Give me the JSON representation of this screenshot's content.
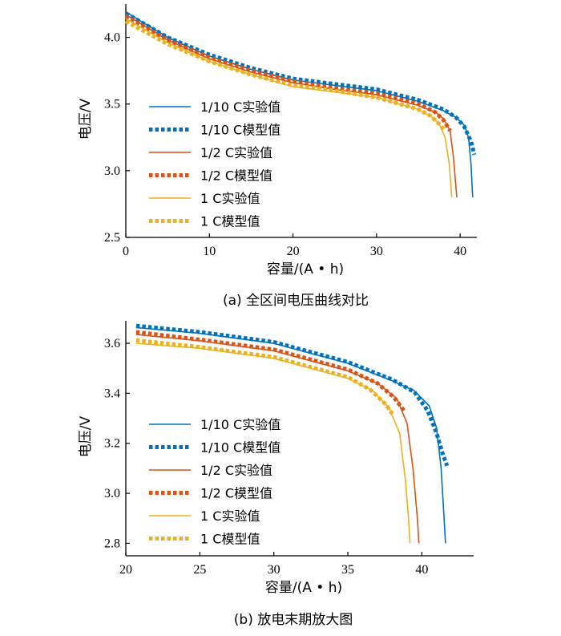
{
  "chart_data": [
    {
      "type": "line",
      "caption": "(a)  全区间电压曲线对比",
      "xlabel": "容量/(A • h)",
      "ylabel": "电压/V",
      "xlim": [
        0,
        42
      ],
      "ylim": [
        2.5,
        4.25
      ],
      "xticks": [
        0,
        10,
        20,
        30,
        40
      ],
      "yticks": [
        2.5,
        3.0,
        3.5,
        4.0
      ],
      "xtick_labels": [
        "0",
        "10",
        "20",
        "30",
        "40"
      ],
      "ytick_labels": [
        "2.5",
        "3.0",
        "3.5",
        "4.0"
      ],
      "legend_position": "center-left",
      "grid": false,
      "series": [
        {
          "name": "1/10 C实验值",
          "color": "#0072BD",
          "style": "solid",
          "x": [
            0,
            5,
            10,
            15,
            20,
            25,
            30,
            35,
            38,
            39.5,
            40.5,
            41,
            41.3,
            41.5
          ],
          "y": [
            4.19,
            4.0,
            3.86,
            3.76,
            3.68,
            3.64,
            3.6,
            3.52,
            3.45,
            3.4,
            3.34,
            3.25,
            3.05,
            2.8
          ]
        },
        {
          "name": "1/10 C模型值",
          "color": "#0072BD",
          "style": "dotted",
          "x": [
            0,
            5,
            10,
            15,
            20,
            25,
            30,
            35,
            38,
            39.5,
            40.5,
            41.3,
            41.7
          ],
          "y": [
            4.18,
            4.0,
            3.87,
            3.77,
            3.69,
            3.65,
            3.61,
            3.53,
            3.46,
            3.4,
            3.33,
            3.22,
            3.12
          ]
        },
        {
          "name": "1/2 C实验值",
          "color": "#D95319",
          "style": "solid",
          "x": [
            0,
            5,
            10,
            15,
            20,
            25,
            30,
            35,
            37,
            38,
            38.8,
            39.2,
            39.6
          ],
          "y": [
            4.17,
            3.98,
            3.84,
            3.74,
            3.66,
            3.61,
            3.57,
            3.49,
            3.44,
            3.39,
            3.3,
            3.1,
            2.8
          ]
        },
        {
          "name": "1/2 C模型值",
          "color": "#D95319",
          "style": "dotted",
          "x": [
            0,
            5,
            10,
            15,
            20,
            25,
            30,
            35,
            37,
            38,
            38.8
          ],
          "y": [
            4.16,
            3.98,
            3.85,
            3.75,
            3.67,
            3.62,
            3.58,
            3.5,
            3.44,
            3.38,
            3.3
          ]
        },
        {
          "name": "1 C实验值",
          "color": "#EDB120",
          "style": "solid",
          "x": [
            0,
            5,
            10,
            15,
            20,
            25,
            30,
            35,
            36.5,
            37.5,
            38.2,
            38.7,
            39
          ],
          "y": [
            4.14,
            3.96,
            3.82,
            3.72,
            3.63,
            3.59,
            3.55,
            3.46,
            3.41,
            3.35,
            3.25,
            3.05,
            2.8
          ]
        },
        {
          "name": "1 C模型值",
          "color": "#EDB120",
          "style": "dotted",
          "x": [
            0,
            5,
            10,
            15,
            20,
            25,
            30,
            35,
            36.5,
            37.5,
            38.2
          ],
          "y": [
            4.12,
            3.95,
            3.82,
            3.72,
            3.64,
            3.6,
            3.55,
            3.46,
            3.41,
            3.35,
            3.3
          ]
        }
      ]
    },
    {
      "type": "line",
      "caption": "(b)  放电末期放大图",
      "xlabel": "容量/(A • h)",
      "ylabel": "电压/V",
      "xlim": [
        20,
        43.5
      ],
      "ylim": [
        2.75,
        3.69
      ],
      "xticks": [
        20,
        25,
        30,
        35,
        40
      ],
      "yticks": [
        2.8,
        3.0,
        3.2,
        3.4,
        3.6
      ],
      "xtick_labels": [
        "20",
        "25",
        "30",
        "35",
        "40"
      ],
      "ytick_labels": [
        "2.8",
        "3.0",
        "3.2",
        "3.4",
        "3.6"
      ],
      "legend_position": "lower-left",
      "grid": false,
      "series": [
        {
          "name": "1/10 C实验值",
          "color": "#0072BD",
          "style": "solid",
          "x": [
            20.7,
            25,
            30,
            35,
            38,
            39.5,
            40.5,
            41,
            41.3,
            41.5,
            41.6
          ],
          "y": [
            3.663,
            3.64,
            3.6,
            3.52,
            3.45,
            3.41,
            3.35,
            3.26,
            3.1,
            2.9,
            2.8
          ]
        },
        {
          "name": "1/10 C模型值",
          "color": "#0072BD",
          "style": "dotted",
          "x": [
            20.7,
            25,
            30,
            35,
            38,
            39.5,
            40.4,
            41,
            41.4,
            41.7
          ],
          "y": [
            3.67,
            3.645,
            3.605,
            3.525,
            3.455,
            3.405,
            3.33,
            3.24,
            3.16,
            3.11
          ]
        },
        {
          "name": "1/2 C实验值",
          "color": "#D95319",
          "style": "solid",
          "x": [
            20.7,
            25,
            30,
            35,
            37,
            38.3,
            39,
            39.4,
            39.7,
            39.8
          ],
          "y": [
            3.635,
            3.61,
            3.57,
            3.49,
            3.44,
            3.38,
            3.28,
            3.1,
            2.9,
            2.8
          ]
        },
        {
          "name": "1/2 C模型值",
          "color": "#D95319",
          "style": "dotted",
          "x": [
            20.7,
            25,
            30,
            35,
            37,
            38.1,
            38.8
          ],
          "y": [
            3.645,
            3.615,
            3.575,
            3.495,
            3.44,
            3.385,
            3.33
          ]
        },
        {
          "name": "1 C实验值",
          "color": "#EDB120",
          "style": "solid",
          "x": [
            20.7,
            25,
            30,
            35,
            36.7,
            37.8,
            38.5,
            38.9,
            39.1,
            39.2
          ],
          "y": [
            3.6,
            3.58,
            3.54,
            3.46,
            3.41,
            3.34,
            3.24,
            3.05,
            2.9,
            2.8
          ]
        },
        {
          "name": "1 C模型值",
          "color": "#EDB120",
          "style": "dotted",
          "x": [
            20.7,
            25,
            30,
            35,
            36.5,
            37.5,
            38.1
          ],
          "y": [
            3.612,
            3.585,
            3.545,
            3.465,
            3.415,
            3.36,
            3.31
          ]
        }
      ]
    }
  ]
}
